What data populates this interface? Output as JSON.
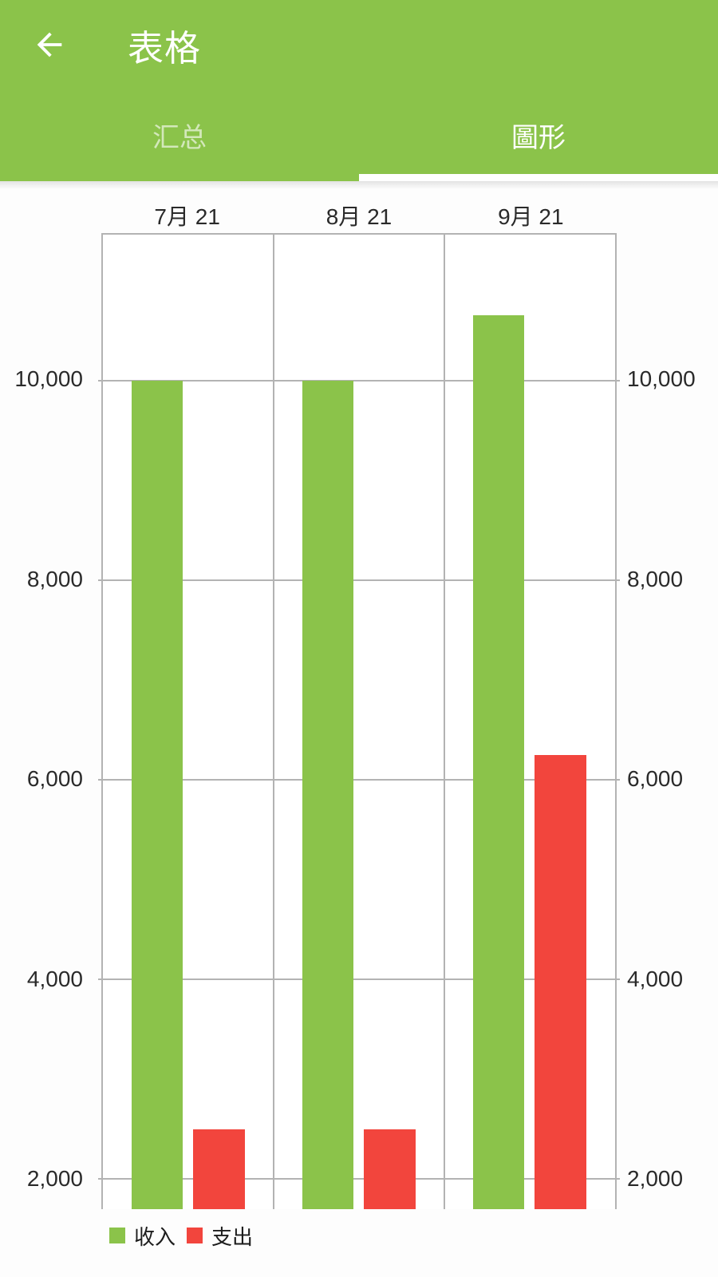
{
  "header": {
    "title": "表格",
    "back_icon": "arrow-left",
    "tabs": [
      {
        "label": "汇总",
        "selected": false
      },
      {
        "label": "圖形",
        "selected": true
      }
    ]
  },
  "colors": {
    "header_green": "#8BC34A",
    "tab_indicator": "#ffffff",
    "income_green": "#8BC34A",
    "expense_red": "#F2453D",
    "gridline": "#b3b3b3",
    "axis_text": "#2a2a2a"
  },
  "chart_data": {
    "type": "bar",
    "categories": [
      "7月 21",
      "8月 21",
      "9月 21"
    ],
    "series": [
      {
        "key": "income",
        "name": "收入",
        "color": "#8BC34A",
        "values": [
          10000,
          10000,
          10650
        ]
      },
      {
        "key": "expense",
        "name": "支出",
        "color": "#F2453D",
        "values": [
          2500,
          2500,
          6250
        ]
      }
    ],
    "y_ticks": [
      2000,
      4000,
      6000,
      8000,
      10000
    ],
    "y_tick_labels": [
      "2,000",
      "4,000",
      "6,000",
      "8,000",
      "10,000"
    ],
    "ylim": [
      1700,
      11460
    ],
    "grid": true,
    "y_axis_sides": "both",
    "legend_position": "bottom-left"
  }
}
